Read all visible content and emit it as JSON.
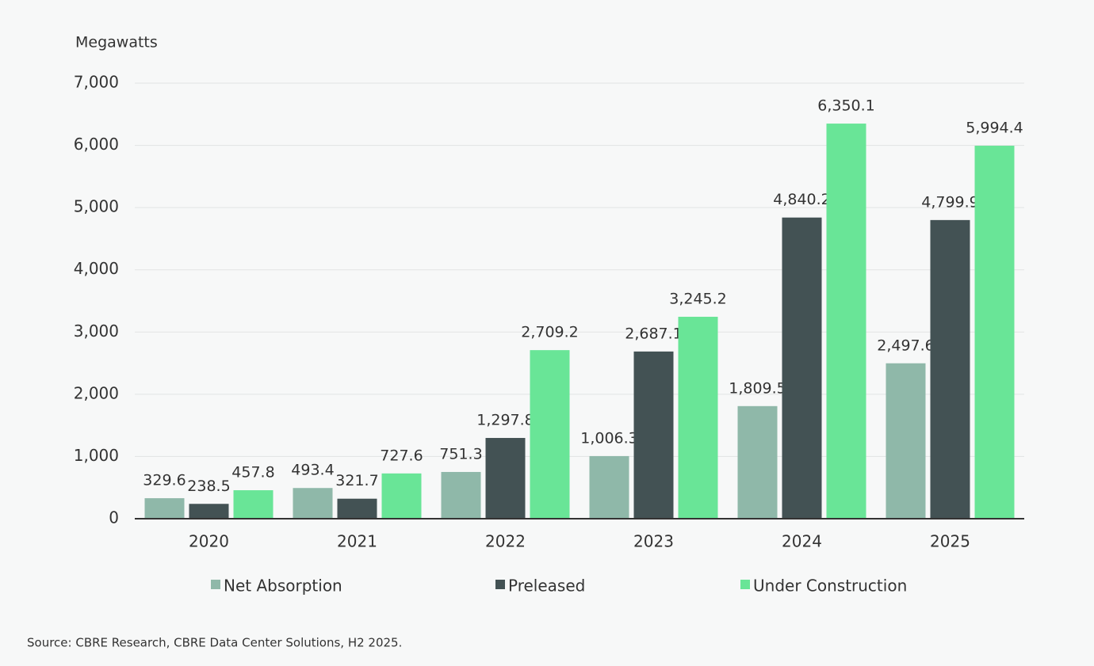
{
  "chart_data": {
    "type": "bar",
    "y_label": "Megawatts",
    "source": "Source: CBRE Research, CBRE Data Center Solutions, H2 2025.",
    "categories": [
      "2020",
      "2021",
      "2022",
      "2023",
      "2024",
      "2025"
    ],
    "series": [
      {
        "name": "Net Absorption",
        "color": "#8fb8a9",
        "values": [
          329.6,
          493.4,
          751.3,
          1006.3,
          1809.5,
          2497.6
        ],
        "value_labels": [
          "329.6",
          "493.4",
          "751.3",
          "1,006.3",
          "1,809.5",
          "2,497.6"
        ]
      },
      {
        "name": "Preleased",
        "color": "#435254",
        "values": [
          238.5,
          321.7,
          1297.8,
          2687.1,
          4840.2,
          4799.9
        ],
        "value_labels": [
          "238.5",
          "321.7",
          "1,297.8",
          "2,687.1",
          "4,840.2",
          "4,799.9"
        ]
      },
      {
        "name": "Under Construction",
        "color": "#69e597",
        "values": [
          457.8,
          727.6,
          2709.2,
          3245.2,
          6350.1,
          5994.4
        ],
        "value_labels": [
          "457.8",
          "727.6",
          "2,709.2",
          "3,245.2",
          "6,350.1",
          "5,994.4"
        ]
      }
    ],
    "ylim": [
      0,
      7000
    ],
    "yticks": [
      0,
      {
        "value": 1000,
        "label": "1,000"
      },
      {
        "value": 2000,
        "label": "2,000"
      },
      {
        "value": 3000,
        "label": "3,000"
      },
      {
        "value": 4000,
        "label": "4,000"
      },
      {
        "value": 5000,
        "label": "5,000"
      },
      {
        "value": 6000,
        "label": "6,000"
      },
      {
        "value": 7000,
        "label": "7,000"
      }
    ],
    "grid": true
  }
}
